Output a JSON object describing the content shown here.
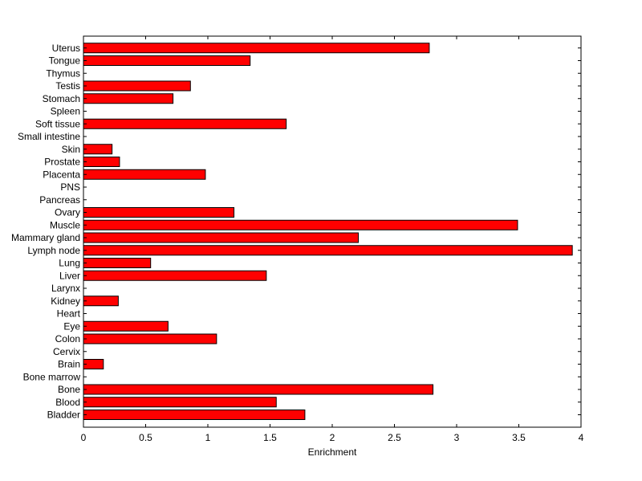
{
  "chart_data": {
    "type": "bar",
    "orientation": "horizontal",
    "title": "",
    "xlabel": "Enrichment",
    "ylabel": "",
    "xlim": [
      0,
      4
    ],
    "xticks": [
      0,
      0.5,
      1,
      1.5,
      2,
      2.5,
      3,
      3.5,
      4
    ],
    "xtick_labels": [
      "0",
      "0.5",
      "1",
      "1.5",
      "2",
      "2.5",
      "3",
      "3.5",
      "4"
    ],
    "grid": false,
    "legend": "none",
    "bar_color": "#ff0000",
    "categories": [
      "Bladder",
      "Blood",
      "Bone",
      "Bone marrow",
      "Brain",
      "Cervix",
      "Colon",
      "Eye",
      "Heart",
      "Kidney",
      "Larynx",
      "Liver",
      "Lung",
      "Lymph node",
      "Mammary gland",
      "Muscle",
      "Ovary",
      "Pancreas",
      "PNS",
      "Placenta",
      "Prostate",
      "Skin",
      "Small intestine",
      "Soft tissue",
      "Spleen",
      "Stomach",
      "Testis",
      "Thymus",
      "Tongue",
      "Uterus"
    ],
    "values": [
      1.78,
      1.55,
      2.81,
      0,
      0.16,
      0,
      1.07,
      0.68,
      0,
      0.28,
      0,
      1.47,
      0.54,
      3.93,
      2.21,
      3.49,
      1.21,
      0,
      0,
      0.98,
      0.29,
      0.23,
      0,
      1.63,
      0,
      0.72,
      0.86,
      0,
      1.34,
      2.78
    ]
  }
}
